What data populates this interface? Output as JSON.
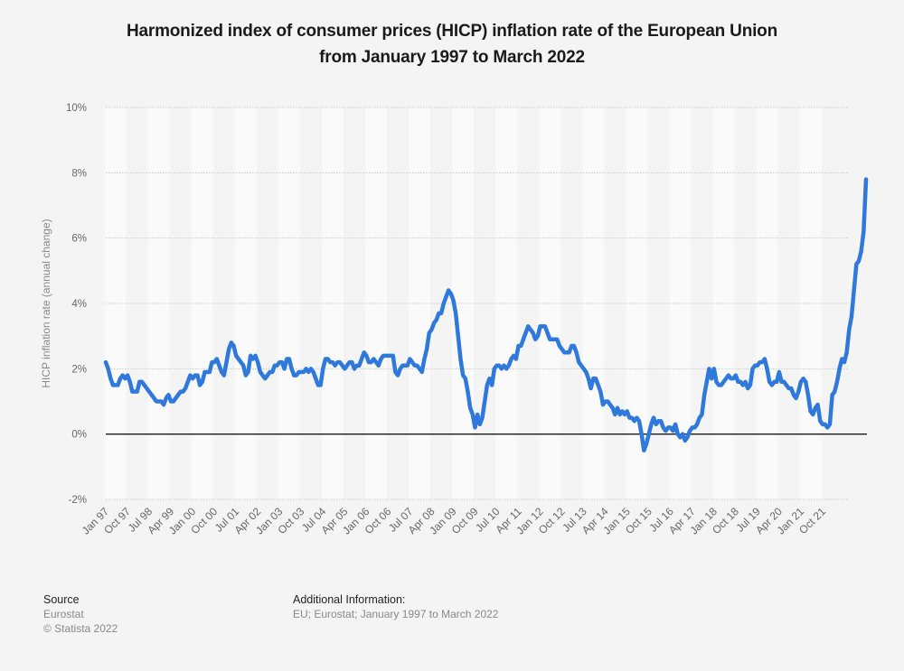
{
  "title": {
    "line1": "Harmonized index of consumer prices (HICP) inflation rate of the European Union",
    "line2": "from January 1997 to March 2022"
  },
  "footer": {
    "source_heading": "Source",
    "source_name": "Eurostat",
    "copyright": "© Statista 2022",
    "additional_heading": "Additional Information:",
    "additional_text": "EU; Eurostat; January 1997 to March 2022"
  },
  "chart_data": {
    "type": "line",
    "title": "Harmonized index of consumer prices (HICP) inflation rate of the European Union from January 1997 to March 2022",
    "xlabel": "",
    "ylabel": "HICP inflation rate (annual change)",
    "ylim": [
      -2,
      10
    ],
    "yticks": [
      "-2%",
      "0%",
      "2%",
      "4%",
      "6%",
      "8%",
      "10%"
    ],
    "ytick_values": [
      -2,
      0,
      2,
      4,
      6,
      8,
      10
    ],
    "grid": true,
    "legend": "none",
    "line_color": "#2f78dc",
    "x_start": "Jan 1997",
    "x_end": "Mar 2022",
    "xticks": [
      "Jan 97",
      "Oct 97",
      "Jul 98",
      "Apr 99",
      "Jan 00",
      "Oct 00",
      "Jul 01",
      "Apr 02",
      "Jan 03",
      "Oct 03",
      "Jul 04",
      "Apr 05",
      "Jan 06",
      "Oct 06",
      "Jul 07",
      "Apr 08",
      "Jan 09",
      "Oct 09",
      "Jul 10",
      "Apr 11",
      "Jan 12",
      "Oct 12",
      "Jul 13",
      "Apr 14",
      "Jan 15",
      "Oct 15",
      "Jul 16",
      "Apr 17",
      "Jan 18",
      "Oct 18",
      "Jul 19",
      "Apr 20",
      "Jan 21",
      "Oct 21"
    ],
    "xtick_month_index": [
      0,
      9,
      18,
      27,
      36,
      45,
      54,
      63,
      72,
      81,
      90,
      99,
      108,
      117,
      126,
      135,
      144,
      153,
      162,
      171,
      180,
      189,
      198,
      207,
      216,
      225,
      234,
      243,
      252,
      261,
      270,
      279,
      288,
      297
    ],
    "series": [
      {
        "name": "HICP inflation rate",
        "values": [
          2.2,
          2.0,
          1.7,
          1.5,
          1.5,
          1.5,
          1.7,
          1.8,
          1.7,
          1.8,
          1.6,
          1.3,
          1.3,
          1.3,
          1.6,
          1.6,
          1.5,
          1.4,
          1.3,
          1.2,
          1.1,
          1.0,
          1.0,
          1.0,
          0.9,
          1.1,
          1.2,
          1.0,
          1.0,
          1.1,
          1.2,
          1.3,
          1.3,
          1.4,
          1.6,
          1.8,
          1.7,
          1.8,
          1.8,
          1.5,
          1.6,
          1.9,
          1.9,
          1.9,
          2.2,
          2.2,
          2.3,
          2.1,
          1.9,
          1.8,
          2.2,
          2.6,
          2.8,
          2.7,
          2.4,
          2.3,
          2.2,
          2.1,
          1.8,
          1.9,
          2.4,
          2.3,
          2.4,
          2.2,
          1.9,
          1.8,
          1.7,
          1.8,
          1.9,
          1.9,
          2.1,
          2.1,
          2.2,
          2.2,
          2.0,
          2.3,
          2.3,
          2.0,
          1.8,
          1.8,
          1.9,
          1.9,
          1.9,
          2.0,
          1.9,
          2.0,
          1.9,
          1.7,
          1.5,
          1.5,
          2.0,
          2.3,
          2.3,
          2.2,
          2.2,
          2.1,
          2.2,
          2.2,
          2.1,
          2.0,
          2.1,
          2.2,
          2.2,
          2.0,
          2.1,
          2.1,
          2.3,
          2.5,
          2.4,
          2.2,
          2.2,
          2.3,
          2.2,
          2.1,
          2.3,
          2.4,
          2.4,
          2.4,
          2.4,
          2.4,
          1.9,
          1.8,
          2.0,
          2.1,
          2.1,
          2.1,
          2.3,
          2.2,
          2.1,
          2.1,
          2.0,
          1.9,
          2.3,
          2.6,
          3.1,
          3.2,
          3.4,
          3.5,
          3.7,
          3.7,
          4.0,
          4.2,
          4.4,
          4.3,
          4.1,
          3.7,
          3.0,
          2.3,
          1.8,
          1.7,
          1.3,
          0.8,
          0.6,
          0.2,
          0.6,
          0.3,
          0.5,
          1.0,
          1.5,
          1.7,
          1.5,
          2.0,
          2.1,
          2.1,
          2.0,
          2.1,
          2.0,
          2.1,
          2.3,
          2.4,
          2.3,
          2.7,
          2.7,
          2.9,
          3.1,
          3.3,
          3.2,
          3.1,
          2.9,
          3.0,
          3.3,
          3.3,
          3.3,
          3.1,
          2.9,
          2.9,
          2.9,
          2.9,
          2.7,
          2.6,
          2.5,
          2.5,
          2.5,
          2.7,
          2.7,
          2.5,
          2.2,
          2.1,
          2.0,
          1.9,
          1.7,
          1.4,
          1.7,
          1.7,
          1.5,
          1.3,
          0.9,
          1.0,
          1.0,
          0.9,
          0.8,
          0.6,
          0.8,
          0.6,
          0.7,
          0.6,
          0.7,
          0.5,
          0.5,
          0.4,
          0.5,
          0.4,
          0.0,
          -0.5,
          -0.3,
          0.0,
          0.3,
          0.5,
          0.3,
          0.4,
          0.4,
          0.2,
          0.1,
          0.2,
          0.2,
          0.1,
          0.3,
          0.0,
          -0.1,
          0.0,
          -0.2,
          -0.1,
          0.1,
          0.2,
          0.2,
          0.3,
          0.5,
          0.6,
          1.2,
          1.6,
          2.0,
          1.7,
          2.0,
          1.6,
          1.5,
          1.5,
          1.6,
          1.7,
          1.8,
          1.7,
          1.7,
          1.8,
          1.6,
          1.6,
          1.5,
          1.6,
          1.4,
          1.5,
          2.0,
          2.1,
          2.1,
          2.2,
          2.2,
          2.3,
          2.0,
          1.6,
          1.5,
          1.6,
          1.6,
          1.9,
          1.6,
          1.6,
          1.5,
          1.4,
          1.4,
          1.2,
          1.1,
          1.3,
          1.6,
          1.7,
          1.6,
          1.2,
          0.7,
          0.6,
          0.8,
          0.9,
          0.4,
          0.3,
          0.3,
          0.2,
          0.3,
          1.2,
          1.3,
          1.6,
          2.0,
          2.3,
          2.2,
          2.5,
          3.2,
          3.6,
          4.4,
          5.2,
          5.3,
          5.6,
          6.2,
          7.8
        ]
      }
    ]
  }
}
